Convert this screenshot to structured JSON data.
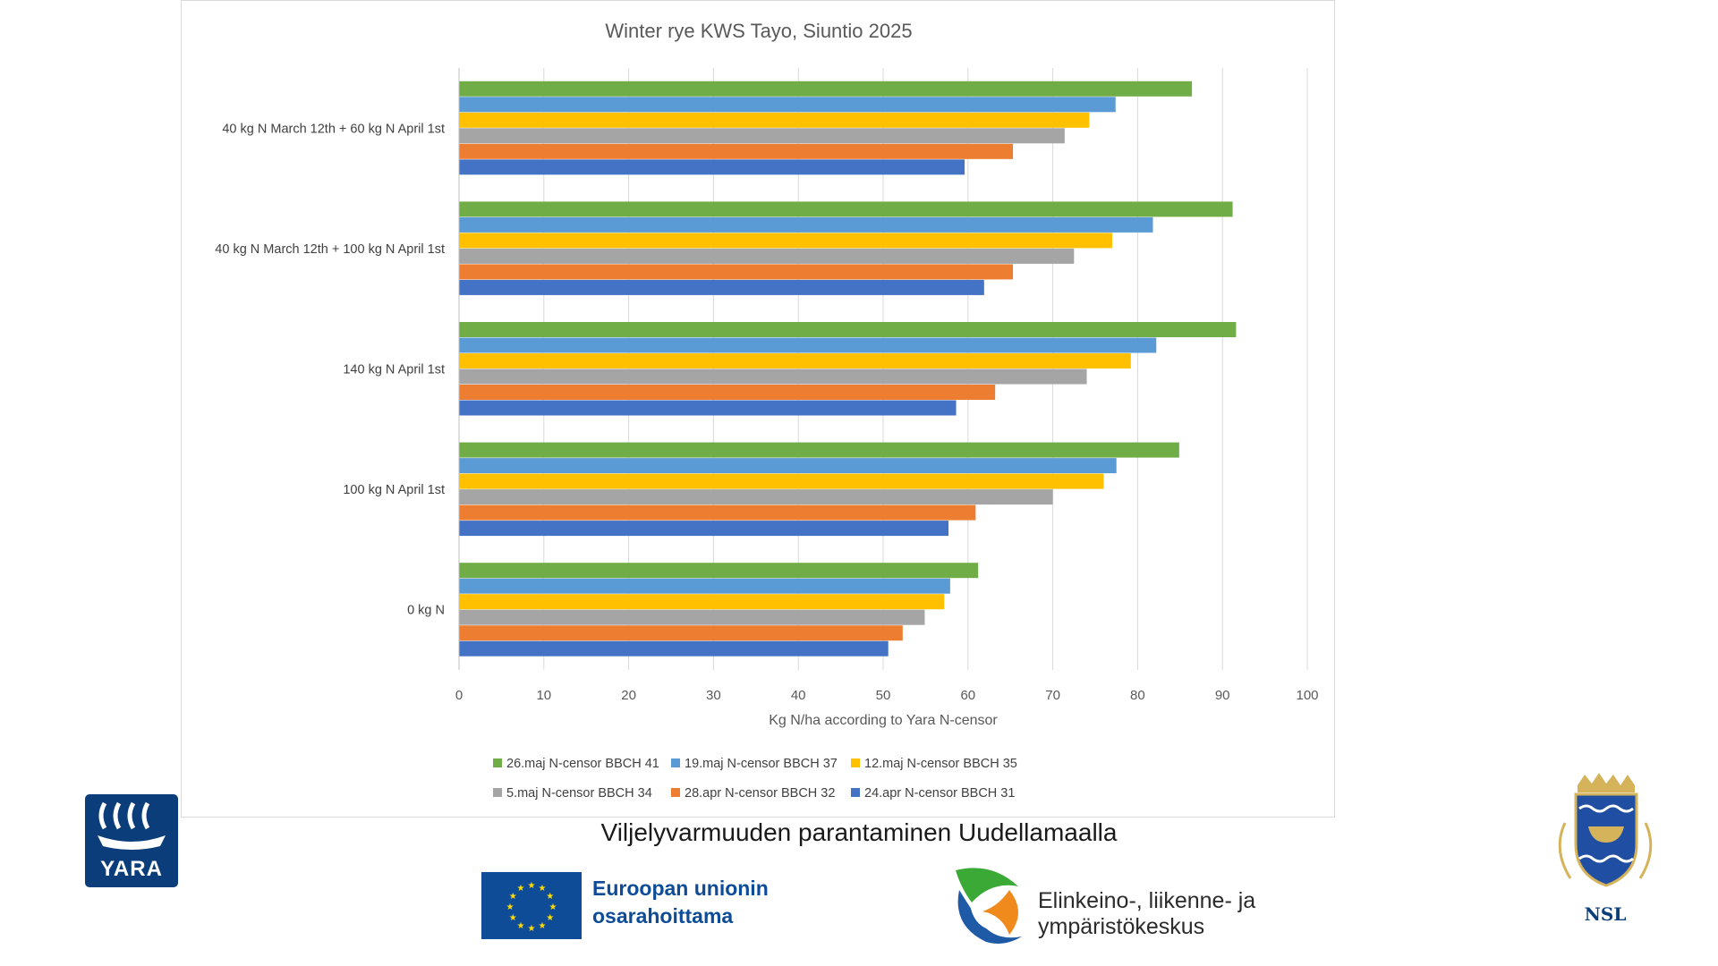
{
  "chart_data": {
    "type": "bar",
    "orientation": "horizontal",
    "title": "Winter rye KWS Tayo, Siuntio 2025",
    "xlabel": "Kg N/ha according to Yara N-censor",
    "ylabel": "",
    "xlim": [
      0,
      100
    ],
    "xticks": [
      "0",
      "10",
      "20",
      "30",
      "40",
      "50",
      "60",
      "70",
      "80",
      "90",
      "100"
    ],
    "grid": "vertical",
    "legend_position": "bottom",
    "categories": [
      "40 kg N March 12th + 60 kg N April 1st",
      "40 kg N March 12th + 100 kg N April 1st",
      "140 kg N April 1st",
      "100 kg N April 1st",
      "0 kg N"
    ],
    "series": [
      {
        "name": "26.maj N-censor BBCH 41",
        "color": "#70ad47",
        "values": [
          86.4,
          91.2,
          91.6,
          84.9,
          61.2
        ]
      },
      {
        "name": "19.maj N-censor BBCH 37",
        "color": "#5b9bd5",
        "values": [
          77.4,
          81.8,
          82.2,
          77.5,
          57.9
        ]
      },
      {
        "name": "12.maj N-censor BBCH 35",
        "color": "#ffc000",
        "values": [
          74.3,
          77.0,
          79.2,
          76.0,
          57.2
        ]
      },
      {
        "name": "5.maj N-censor BBCH 34",
        "color": "#a5a5a5",
        "values": [
          71.4,
          72.5,
          74.0,
          70.0,
          54.9
        ]
      },
      {
        "name": "28.apr N-censor BBCH 32",
        "color": "#ed7d31",
        "values": [
          65.3,
          65.3,
          63.2,
          60.9,
          52.3
        ]
      },
      {
        "name": "24.apr N-censor BBCH 31",
        "color": "#4472c4",
        "values": [
          59.6,
          61.9,
          58.6,
          57.7,
          50.6
        ]
      }
    ]
  },
  "footer": {
    "project_title": "Viljelyvarmuuden parantaminen Uudellamaalla",
    "eu_line1": "Euroopan unionin",
    "eu_line2": "osarahoittama",
    "ely_line1": "Elinkeino-, liikenne- ja",
    "ely_line2": "ympäristökeskus",
    "yara_label": "YARA",
    "nsl_label": "NSL"
  }
}
